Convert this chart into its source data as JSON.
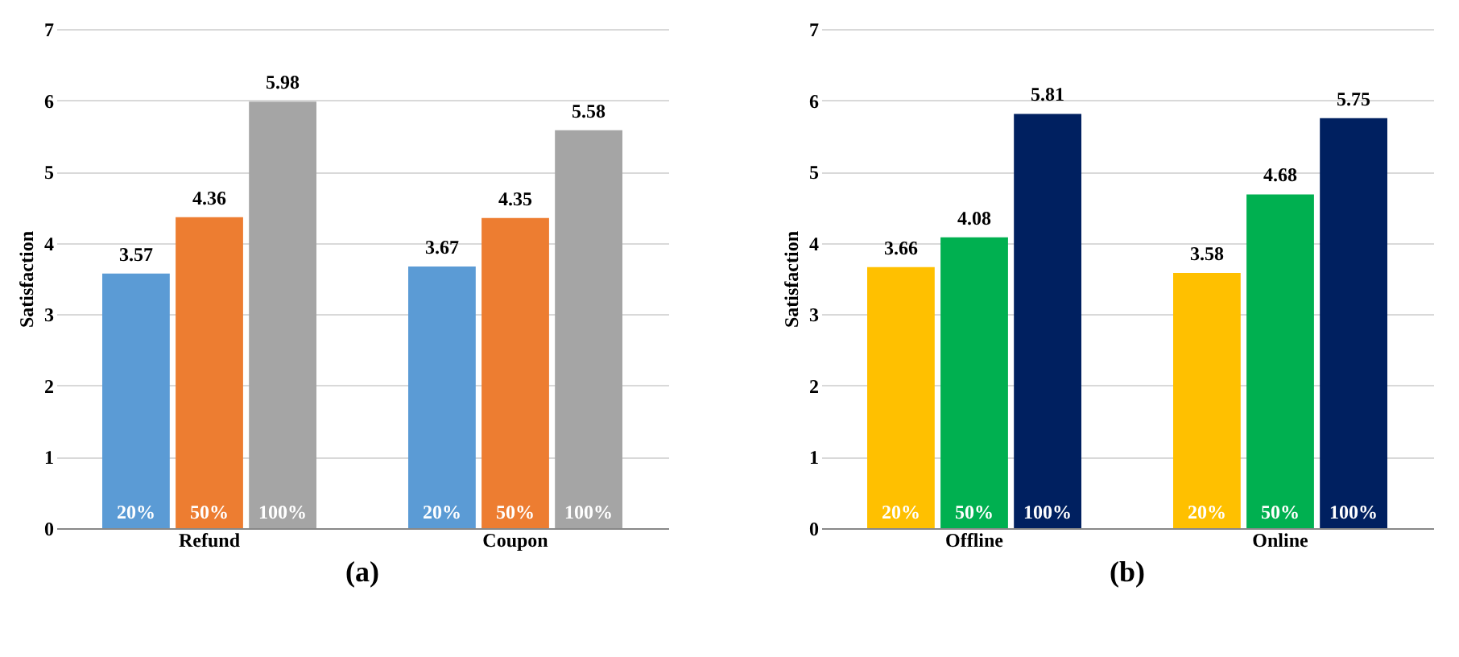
{
  "chart_data": [
    {
      "type": "bar",
      "title": "(a)",
      "ylabel": "Satisfaction",
      "categories": [
        "Refund",
        "Coupon"
      ],
      "ylim": [
        0,
        7
      ],
      "yticks": [
        0,
        1,
        2,
        3,
        4,
        5,
        6,
        7
      ],
      "grid": "y",
      "data_labels": true,
      "series": [
        {
          "name": "20%",
          "color": "#5b9bd5",
          "values": [
            3.57,
            3.67
          ]
        },
        {
          "name": "50%",
          "color": "#ed7d31",
          "values": [
            4.36,
            4.35
          ]
        },
        {
          "name": "100%",
          "color": "#a5a5a5",
          "values": [
            5.98,
            5.58
          ]
        }
      ]
    },
    {
      "type": "bar",
      "title": "(b)",
      "ylabel": "Satisfaction",
      "categories": [
        "Offline",
        "Online"
      ],
      "ylim": [
        0,
        7
      ],
      "yticks": [
        0,
        1,
        2,
        3,
        4,
        5,
        6,
        7
      ],
      "grid": "y",
      "data_labels": true,
      "series": [
        {
          "name": "20%",
          "color": "#ffc000",
          "values": [
            3.66,
            3.58
          ]
        },
        {
          "name": "50%",
          "color": "#00b050",
          "values": [
            4.08,
            4.68
          ]
        },
        {
          "name": "100%",
          "color": "#002060",
          "values": [
            5.81,
            5.75
          ]
        }
      ]
    }
  ]
}
